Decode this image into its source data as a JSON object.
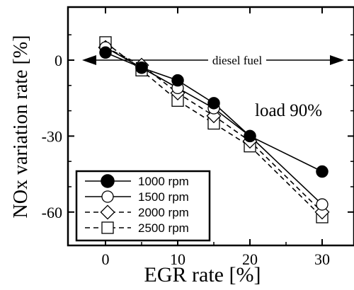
{
  "chart_data": {
    "type": "line",
    "x_ticks": [
      "0",
      "10",
      "20",
      "30"
    ],
    "y_ticks": [
      "0",
      "-30",
      "-60"
    ],
    "xlabel": "EGR rate [%]",
    "ylabel": "NOx variation rate [%]",
    "xlim": [
      -5,
      30
    ],
    "ylim": [
      -70,
      16
    ],
    "annotations": {
      "range_label": "diesel fuel",
      "load_label": "load 90%"
    },
    "legend_position": "bottom-left",
    "series": [
      {
        "name": "1000 rpm",
        "marker": "filled-circle",
        "line": "solid",
        "points": [
          [
            0,
            3
          ],
          [
            5,
            -3
          ],
          [
            10,
            -8
          ],
          [
            15,
            -17
          ],
          [
            20,
            -30
          ],
          [
            30,
            -44
          ]
        ]
      },
      {
        "name": "1500 rpm",
        "marker": "open-circle",
        "line": "solid",
        "points": [
          [
            0,
            5
          ],
          [
            5,
            -3
          ],
          [
            10,
            -11
          ],
          [
            15,
            -19
          ],
          [
            20,
            -30
          ],
          [
            30,
            -57
          ]
        ]
      },
      {
        "name": "2000 rpm",
        "marker": "open-diamond",
        "line": "dashed",
        "points": [
          [
            0,
            5
          ],
          [
            5,
            -2
          ],
          [
            10,
            -13
          ],
          [
            15,
            -22
          ],
          [
            20,
            -32
          ],
          [
            30,
            -60
          ]
        ]
      },
      {
        "name": "2500 rpm",
        "marker": "open-square",
        "line": "dashed",
        "points": [
          [
            0,
            7
          ],
          [
            5,
            -4
          ],
          [
            10,
            -16
          ],
          [
            15,
            -25
          ],
          [
            20,
            -34
          ],
          [
            30,
            -62
          ]
        ]
      }
    ]
  }
}
